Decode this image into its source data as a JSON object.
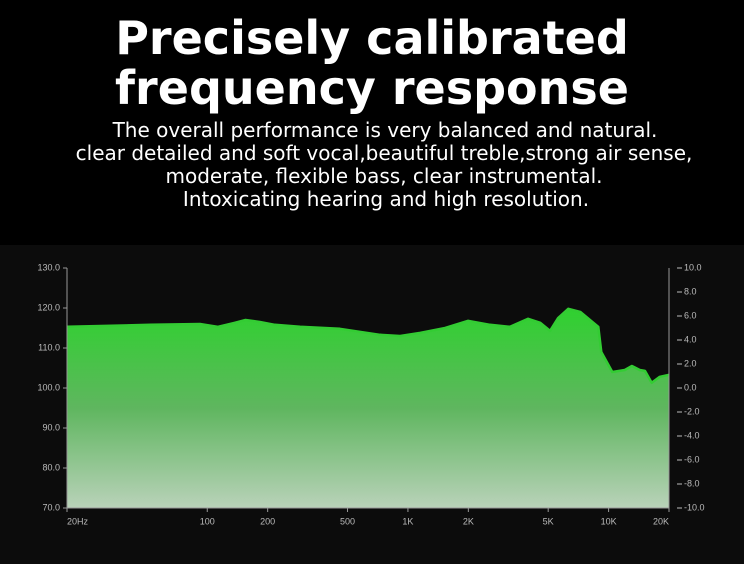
{
  "chart_data": {
    "type": "area",
    "title": [
      "Precisely calibrated",
      "frequency response"
    ],
    "subtitle": [
      "The overall performance is very balanced and natural.",
      "clear detailed and soft vocal,beautiful treble,strong air sense,",
      "moderate, flexible bass, clear instrumental.",
      "Intoxicating hearing and high resolution."
    ],
    "xscale": "log",
    "xlim": [
      20,
      20000
    ],
    "xticks": [
      {
        "value": 20,
        "label": "20Hz"
      },
      100,
      200,
      500,
      {
        "value": 1000,
        "label": "1K"
      },
      {
        "value": 2000,
        "label": "2K"
      },
      {
        "value": 5000,
        "label": "5K"
      },
      {
        "value": 10000,
        "label": "10K"
      },
      {
        "value": 20000,
        "label": "20K"
      }
    ],
    "ylim": [
      70,
      130
    ],
    "yticks": [
      {
        "value": 70,
        "label": "70.0"
      },
      {
        "value": 80,
        "label": "80.0"
      },
      {
        "value": 90,
        "label": "90.0"
      },
      {
        "value": 100,
        "label": "100.0"
      },
      {
        "value": 110,
        "label": "110.0"
      },
      {
        "value": 120,
        "label": "120.0"
      },
      {
        "value": 130,
        "label": "130.0"
      }
    ],
    "y2lim": [
      -10,
      10
    ],
    "y2ticks": [
      {
        "value": 10,
        "label": "10.0"
      },
      {
        "value": 8,
        "label": "8.0"
      },
      {
        "value": 6,
        "label": "6.0"
      },
      {
        "value": 4,
        "label": "4.0"
      },
      {
        "value": 2,
        "label": "2.0"
      },
      {
        "value": 0,
        "label": "0.0"
      },
      {
        "value": -2,
        "label": "-2.0"
      },
      {
        "value": -4,
        "label": "-4.0"
      },
      {
        "value": -6,
        "label": "-6.0"
      },
      {
        "value": -8,
        "label": "-8.0"
      },
      {
        "value": -10,
        "label": "-10.0"
      }
    ],
    "grid": false,
    "x": [
      20,
      52,
      92,
      113,
      137,
      155,
      183,
      217,
      290,
      458,
      726,
      914,
      1152,
      1532,
      1995,
      2565,
      3225,
      3970,
      4566,
      5112,
      5600,
      6300,
      7240,
      8300,
      8890,
      9200,
      10430,
      12050,
      13060,
      14300,
      15160,
      16400,
      18000,
      20000
    ],
    "series": [
      {
        "color": "#33cc33",
        "values": [
          115.3,
          115.8,
          116.0,
          115.3,
          116.3,
          117.0,
          116.5,
          115.8,
          115.3,
          114.8,
          113.3,
          113.0,
          113.8,
          115.0,
          116.8,
          115.8,
          115.3,
          117.3,
          116.3,
          114.3,
          117.5,
          119.8,
          119.0,
          116.5,
          115.3,
          109.0,
          104.0,
          104.5,
          105.5,
          104.5,
          104.3,
          101.3,
          102.8,
          103.3
        ]
      }
    ]
  }
}
